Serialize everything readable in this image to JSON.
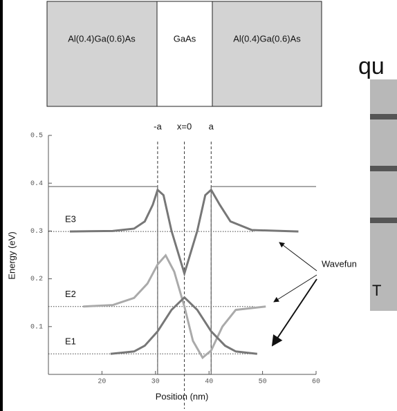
{
  "chart_data": {
    "type": "line",
    "layers": [
      "Al(0.4)Ga(0.6)As",
      "GaAs",
      "Al(0.4)Ga(0.6)As"
    ],
    "xlabel": "Position (nm)",
    "ylabel": "Energy (eV)",
    "xlim": [
      10,
      60
    ],
    "ylim": [
      0,
      0.5
    ],
    "xticks": [
      20,
      30,
      40,
      50,
      60
    ],
    "yticks": [
      0.1,
      0.2,
      0.3,
      0.4,
      0.5
    ],
    "markers": [
      {
        "label": "-a",
        "x": 30.4
      },
      {
        "label": "x=0",
        "x": 35.4
      },
      {
        "label": "a",
        "x": 40.4
      }
    ],
    "levels": [
      0.299,
      0.142,
      0.043
    ],
    "series": [
      {
        "color": "#666666",
        "x": [
          10,
          30.4,
          30.4,
          40.4,
          40.4,
          60
        ],
        "y": [
          0.393,
          0.393,
          0,
          0,
          0.393,
          0.393
        ]
      },
      {
        "name": "E3",
        "color": "#777777",
        "x": [
          14,
          22,
          26,
          28,
          29.5,
          30.4,
          31.5,
          33,
          35.4,
          37.8,
          39.3,
          40.4,
          42,
          44,
          48,
          56.7
        ],
        "y": [
          0.299,
          0.3,
          0.305,
          0.32,
          0.355,
          0.386,
          0.375,
          0.3,
          0.211,
          0.3,
          0.375,
          0.386,
          0.355,
          0.32,
          0.302,
          0.299
        ]
      },
      {
        "name": "E2",
        "color": "#aaaaaa",
        "x": [
          16.5,
          22,
          26,
          28.5,
          30.4,
          31.9,
          33.5,
          35.4,
          37,
          38.8,
          40.4,
          42.5,
          45,
          50.6
        ],
        "y": [
          0.142,
          0.145,
          0.16,
          0.19,
          0.23,
          0.249,
          0.215,
          0.142,
          0.07,
          0.035,
          0.05,
          0.1,
          0.135,
          0.142
        ]
      },
      {
        "name": "E1",
        "color": "#777777",
        "x": [
          21.6,
          26,
          28,
          30.4,
          33,
          35.4,
          37.8,
          40.4,
          43,
          45,
          49
        ],
        "y": [
          0.043,
          0.048,
          0.06,
          0.09,
          0.135,
          0.161,
          0.135,
          0.09,
          0.06,
          0.048,
          0.043
        ]
      }
    ],
    "annotation": "Wavefun",
    "inset": {
      "title": "qu",
      "label": "T"
    }
  }
}
